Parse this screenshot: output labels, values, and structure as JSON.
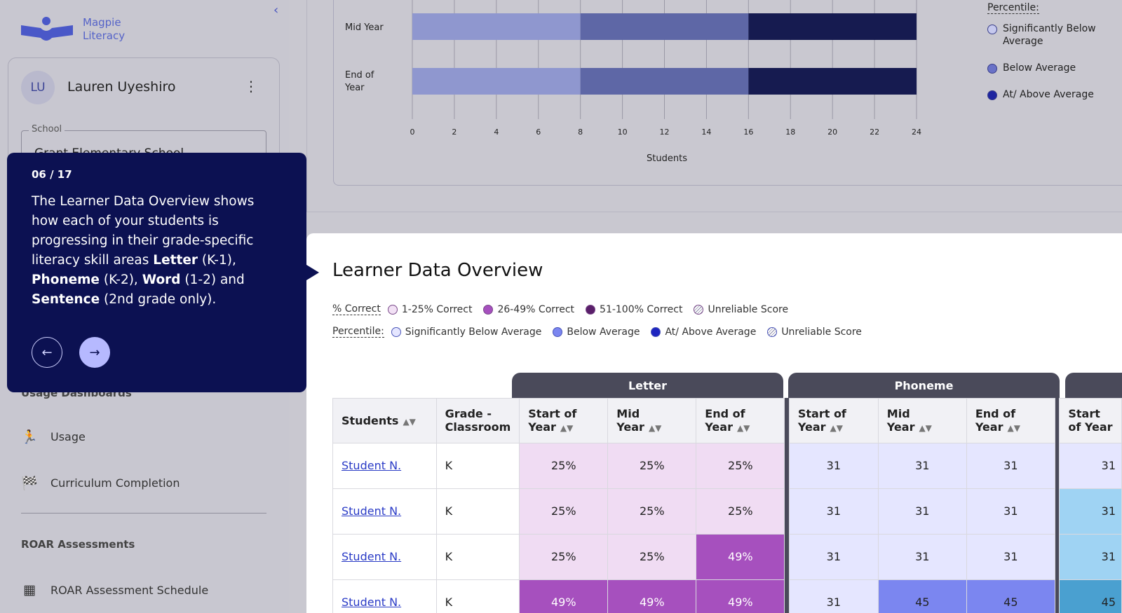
{
  "app": {
    "brand_line1": "Magpie",
    "brand_line2": "Literacy",
    "collapse_icon": "chevron-left-icon"
  },
  "user": {
    "initials": "LU",
    "name": "Lauren Uyeshiro"
  },
  "school": {
    "label": "School",
    "value": "Grant Elementary School"
  },
  "nav": {
    "usage_section": "Usage Dashboards",
    "usage": "Usage",
    "curriculum": "Curriculum Completion",
    "roar_section": "ROAR Assessments",
    "roar_schedule": "ROAR Assessment Schedule"
  },
  "tooltip": {
    "step": "06 / 17",
    "t1": "The Learner Data Overview shows how each of your students is progressing in their grade-specific literacy skill areas ",
    "letter": "Letter",
    "t2": " (K-1), ",
    "phoneme": "Phoneme",
    "t3": " (K-2), ",
    "word": "Word",
    "t4": " (1-2) and ",
    "sentence": "Sentence",
    "t5": " (2nd grade only)."
  },
  "chart_data": {
    "type": "bar",
    "orientation": "horizontal",
    "stacked": true,
    "categories": [
      "Mid Year",
      "End of Year"
    ],
    "series": [
      {
        "name": "Significantly Below Average",
        "color": "#8f97cf",
        "values": [
          8,
          8
        ]
      },
      {
        "name": "Below Average",
        "color": "#5e67a6",
        "values": [
          8,
          8
        ]
      },
      {
        "name": "At/ Above Average",
        "color": "#161b50",
        "values": [
          8,
          8
        ]
      }
    ],
    "xlabel": "Students",
    "x_ticks": [
      "0",
      "2",
      "4",
      "6",
      "8",
      "10",
      "12",
      "14",
      "16",
      "18",
      "20",
      "22",
      "24"
    ],
    "xlim": [
      0,
      24
    ],
    "grid": true
  },
  "chart_legend": {
    "title": "Percentile:",
    "items": [
      {
        "label": "Significantly Below Average",
        "color": "#c6c9ee"
      },
      {
        "label": "Below Average",
        "color": "#6a72c7"
      },
      {
        "label": "At/ Above Average",
        "color": "#1e25a0"
      }
    ]
  },
  "overview": {
    "title": "Learner Data Overview",
    "correct_label": "% Correct",
    "correct_items": [
      {
        "label": "1-25% Correct",
        "color": "#f2e1f5"
      },
      {
        "label": "26-49% Correct",
        "color": "#a650be"
      },
      {
        "label": "51-100% Correct",
        "color": "#5a1f6a"
      },
      {
        "label": "Unreliable Score",
        "color": "hatch"
      }
    ],
    "percentile_label": "Percentile:",
    "percentile_items": [
      {
        "label": "Significantly Below Average",
        "color": "#e5e6ff"
      },
      {
        "label": "Below Average",
        "color": "#7b86f0"
      },
      {
        "label": "At/ Above Average",
        "color": "#1e25c0"
      },
      {
        "label": "Unreliable Score",
        "color": "hatch"
      }
    ]
  },
  "table": {
    "group_letter": "Letter",
    "group_phoneme": "Phoneme",
    "h_students": "Students",
    "h_grade": "Grade - Classroom",
    "h_start": "Start of Year",
    "h_mid": "Mid Year",
    "h_end": "End of Year",
    "rows": [
      {
        "name": "Student N.",
        "grade": "K",
        "l": [
          "25%",
          "25%",
          "25%"
        ],
        "p": [
          "31",
          "31",
          "31"
        ],
        "w": "31"
      },
      {
        "name": "Student N.",
        "grade": "K",
        "l": [
          "25%",
          "25%",
          "25%"
        ],
        "p": [
          "31",
          "31",
          "31"
        ],
        "w": "31"
      },
      {
        "name": "Student N.",
        "grade": "K",
        "l": [
          "25%",
          "25%",
          "49%"
        ],
        "p": [
          "31",
          "31",
          "31"
        ],
        "w": "31"
      },
      {
        "name": "Student N.",
        "grade": "K",
        "l": [
          "49%",
          "49%",
          "49%"
        ],
        "p": [
          "31",
          "45",
          "45"
        ],
        "w": "45"
      }
    ]
  }
}
